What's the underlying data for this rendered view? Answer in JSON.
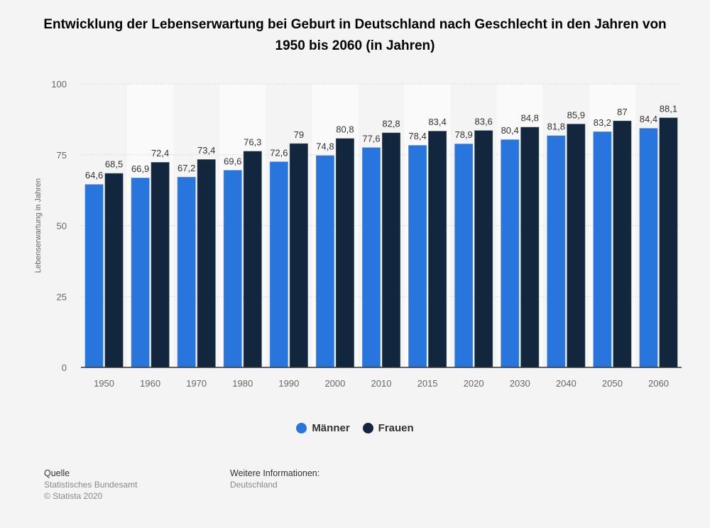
{
  "chart_data": {
    "type": "bar",
    "title": "Entwicklung der Lebenserwartung bei Geburt in Deutschland nach Geschlecht in den Jahren von 1950 bis 2060 (in Jahren)",
    "xlabel": "",
    "ylabel": "Lebenserwartung in Jahren",
    "ylim": [
      0,
      100
    ],
    "yticks": [
      "0",
      "25",
      "50",
      "75",
      "100"
    ],
    "grid": true,
    "legend_position": "bottom",
    "categories": [
      "1950",
      "1960",
      "1970",
      "1980",
      "1990",
      "2000",
      "2010",
      "2015",
      "2020",
      "2030",
      "2040",
      "2050",
      "2060"
    ],
    "series": [
      {
        "name": "Männer",
        "color": "#2876dd",
        "values": [
          64.6,
          66.9,
          67.2,
          69.6,
          72.6,
          74.8,
          77.6,
          78.4,
          78.9,
          80.4,
          81.8,
          83.2,
          84.4
        ]
      },
      {
        "name": "Frauen",
        "color": "#12263d",
        "values": [
          68.5,
          72.4,
          73.4,
          76.3,
          79,
          80.8,
          82.8,
          83.4,
          83.6,
          84.8,
          85.9,
          87,
          88.1
        ]
      }
    ]
  },
  "footer": {
    "source_heading": "Quelle",
    "source": "Statistisches Bundesamt",
    "copyright": "© Statista 2020",
    "info_heading": "Weitere Informationen:",
    "info": "Deutschland"
  }
}
